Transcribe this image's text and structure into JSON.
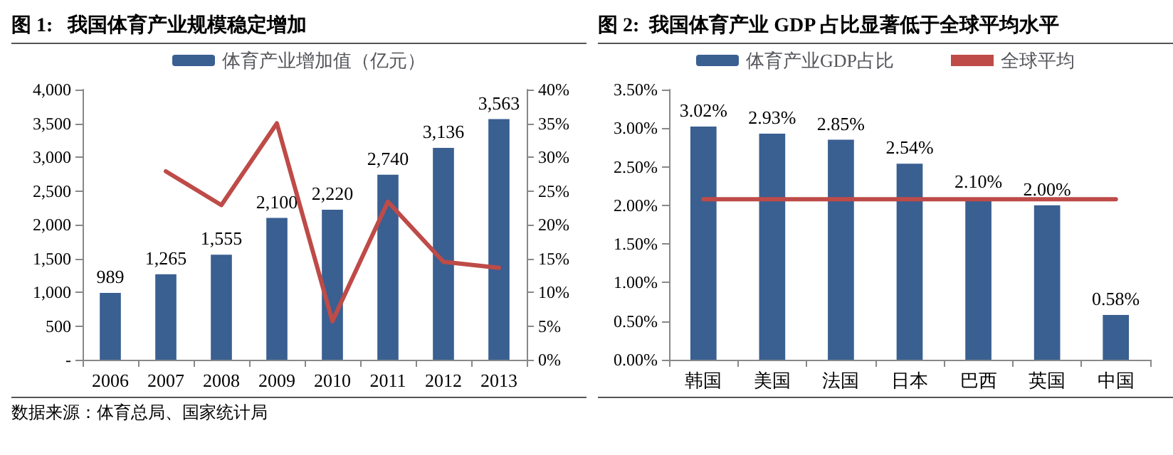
{
  "chart_data": [
    {
      "type": "bar",
      "title": "图 1:   我国体育产业规模稳定增加",
      "categories": [
        "2006",
        "2007",
        "2008",
        "2009",
        "2010",
        "2011",
        "2012",
        "2013"
      ],
      "series": [
        {
          "name": "体育产业增加值（亿元）",
          "color": "#3a5f91",
          "values": [
            989,
            1265,
            1555,
            2100,
            2220,
            2740,
            3136,
            3563
          ],
          "value_labels": [
            "989",
            "1,265",
            "1,555",
            "2,100",
            "2,220",
            "2,740",
            "3,136",
            "3,563"
          ]
        },
        {
          "type": "line",
          "axis": "y2",
          "color": "#be4b48",
          "values": [
            null,
            27.9,
            22.9,
            35.0,
            5.7,
            23.4,
            14.5,
            13.6
          ]
        }
      ],
      "ylim": [
        0,
        4000
      ],
      "yticks": [
        {
          "value": 0,
          "label": "-"
        },
        500,
        {
          "value": 1000,
          "label": "1,000"
        },
        {
          "value": 1500,
          "label": "1,500"
        },
        {
          "value": 2000,
          "label": "2,000"
        },
        {
          "value": 2500,
          "label": "2,500"
        },
        {
          "value": 3000,
          "label": "3,000"
        },
        {
          "value": 3500,
          "label": "3,500"
        },
        {
          "value": 4000,
          "label": "4,000"
        }
      ],
      "y2lim": [
        0,
        40
      ],
      "y2ticks": [
        {
          "value": 0,
          "label": "0%"
        },
        {
          "value": 5,
          "label": "5%"
        },
        {
          "value": 10,
          "label": "10%"
        },
        {
          "value": 15,
          "label": "15%"
        },
        {
          "value": 20,
          "label": "20%"
        },
        {
          "value": 25,
          "label": "25%"
        },
        {
          "value": 30,
          "label": "30%"
        },
        {
          "value": 35,
          "label": "35%"
        },
        {
          "value": 40,
          "label": "40%"
        }
      ],
      "grid": false,
      "legend": "top",
      "marker": "none",
      "line_style": "solid",
      "annotations": [
        "数据来源：体育总局、国家统计局"
      ]
    },
    {
      "type": "bar",
      "title": "图 2:  我国体育产业 GDP 占比显著低于全球平均水平",
      "categories": [
        "韩国",
        "美国",
        "法国",
        "日本",
        "巴西",
        "英国",
        "中国"
      ],
      "series": [
        {
          "name": "体育产业GDP占比",
          "color": "#3a5f91",
          "values": [
            3.02,
            2.93,
            2.85,
            2.54,
            2.1,
            2.0,
            0.58
          ],
          "value_labels": [
            "3.02%",
            "2.93%",
            "2.85%",
            "2.54%",
            "2.10%",
            "2.00%",
            "0.58%"
          ]
        },
        {
          "name": "全球平均",
          "type": "line",
          "color": "#be4b48",
          "values": [
            2.08,
            2.08,
            2.08,
            2.08,
            2.08,
            2.08,
            2.08
          ]
        }
      ],
      "ylim": [
        0,
        3.5
      ],
      "yticks": [
        {
          "value": 0,
          "label": "0.00%"
        },
        {
          "value": 0.5,
          "label": "0.50%"
        },
        {
          "value": 1,
          "label": "1.00%"
        },
        {
          "value": 1.5,
          "label": "1.50%"
        },
        {
          "value": 2,
          "label": "2.00%"
        },
        {
          "value": 2.5,
          "label": "2.50%"
        },
        {
          "value": 3,
          "label": "3.00%"
        },
        {
          "value": 3.5,
          "label": "3.50%"
        }
      ],
      "grid": false,
      "legend": "top",
      "marker": "none",
      "line_style": "solid"
    }
  ]
}
